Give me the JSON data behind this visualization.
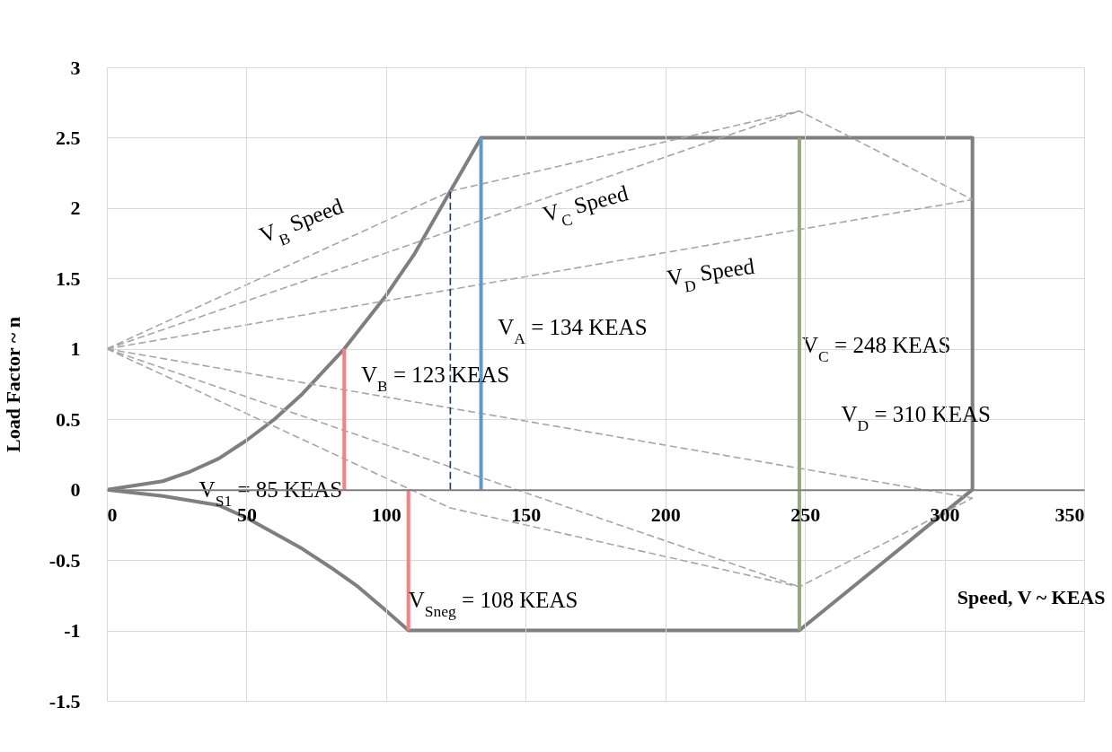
{
  "chart_data": {
    "type": "line",
    "xlabel": "Speed, V ~ KEAS",
    "ylabel": "Load Factor ~ n",
    "xlim": [
      0,
      350
    ],
    "ylim": [
      -1.5,
      3
    ],
    "xticks": [
      0,
      50,
      100,
      150,
      200,
      250,
      300,
      350
    ],
    "yticks": [
      -1.5,
      -1,
      -0.5,
      0,
      0.5,
      1,
      1.5,
      2,
      2.5,
      3
    ],
    "grid": true,
    "series": [
      {
        "color": "#7f7f7f",
        "line_style": "solid",
        "x": [
          0,
          20,
          30,
          40,
          50,
          60,
          70,
          85,
          100,
          110,
          123,
          134,
          310,
          310
        ],
        "values": [
          0,
          0.06,
          0.13,
          0.22,
          0.35,
          0.5,
          0.68,
          1,
          1.38,
          1.67,
          2.12,
          2.5,
          2.5,
          0
        ]
      },
      {
        "color": "#7f7f7f",
        "line_style": "solid",
        "x": [
          0,
          20,
          40,
          50,
          60,
          70,
          80,
          90,
          100,
          108,
          248,
          310
        ],
        "values": [
          0,
          -0.045,
          -0.11,
          -0.2,
          -0.31,
          -0.42,
          -0.55,
          -0.69,
          -0.86,
          -1,
          -1,
          0
        ]
      },
      {
        "color": "#a6a6a6",
        "line_style": "dashed",
        "x": [
          0,
          123,
          248,
          310
        ],
        "values": [
          1,
          2.12,
          2.69,
          2.06
        ]
      },
      {
        "color": "#a6a6a6",
        "line_style": "dashed",
        "x": [
          0,
          248
        ],
        "values": [
          1,
          2.69
        ]
      },
      {
        "color": "#a6a6a6",
        "line_style": "dashed",
        "x": [
          0,
          310
        ],
        "values": [
          1,
          2.06
        ]
      },
      {
        "color": "#a6a6a6",
        "line_style": "dashed",
        "x": [
          0,
          310
        ],
        "values": [
          1,
          -0.06
        ]
      },
      {
        "color": "#a6a6a6",
        "line_style": "dashed",
        "x": [
          0,
          248
        ],
        "values": [
          1,
          -0.69
        ]
      },
      {
        "color": "#a6a6a6",
        "line_style": "dashed",
        "x": [
          0,
          123,
          248,
          310
        ],
        "values": [
          1,
          -0.13,
          -0.69,
          -0.06
        ]
      },
      {
        "color": "#ff7c80",
        "line_style": "solid",
        "x": [
          85,
          85
        ],
        "values": [
          0,
          1
        ]
      },
      {
        "color": "#ff7c80",
        "line_style": "solid",
        "x": [
          108,
          108
        ],
        "values": [
          0,
          -1
        ]
      },
      {
        "color": "#1f3864",
        "line_style": "dashed",
        "x": [
          123,
          123
        ],
        "values": [
          0,
          2.12
        ]
      },
      {
        "color": "#5b9bd5",
        "line_style": "solid",
        "x": [
          134,
          134
        ],
        "values": [
          0,
          2.5
        ]
      },
      {
        "color": "#9aa67a",
        "line_style": "solid",
        "x": [
          248,
          248
        ],
        "values": [
          -1,
          2.5
        ]
      }
    ],
    "annotations": [
      "V$_{B}$ Speed",
      "V$_{C}$ Speed",
      "V$_{D}$ Speed",
      "V$_{A}$ = 134 KEAS",
      "V$_{B}$ = 123 KEAS",
      "V$_{C}$ = 248 KEAS",
      "V$_{D}$ = 310 KEAS",
      "V$_{S1}$ = 85 KEAS",
      "V$_{Sneg}$ = 108 KEAS"
    ]
  }
}
